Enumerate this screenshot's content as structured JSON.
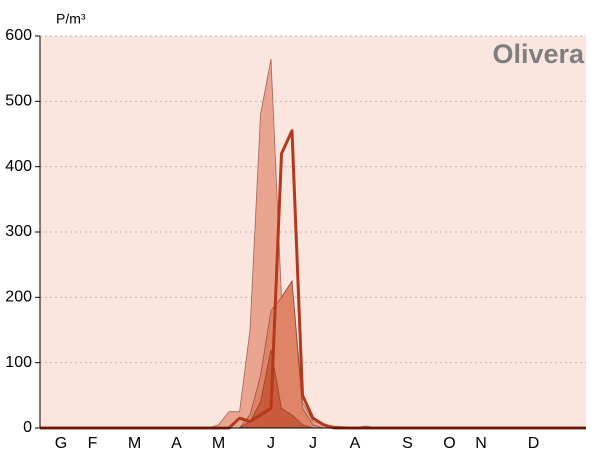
{
  "chart_data": {
    "type": "area",
    "title": "Olivera",
    "y_label": "P/m³",
    "categories": [
      null,
      null,
      "G",
      null,
      null,
      "F",
      null,
      null,
      null,
      "M",
      null,
      null,
      null,
      "A",
      null,
      null,
      null,
      "M",
      null,
      null,
      null,
      null,
      "J",
      null,
      null,
      null,
      "J",
      null,
      null,
      null,
      "A",
      null,
      null,
      null,
      null,
      "S",
      null,
      null,
      null,
      "O",
      null,
      null,
      "N",
      null,
      null,
      null,
      null,
      "D",
      null,
      null,
      null,
      null,
      null
    ],
    "series": [
      {
        "type": "area",
        "color": "#eaa591",
        "values": [
          0,
          0,
          0,
          0,
          0,
          0,
          0,
          0,
          0,
          0,
          0,
          0,
          0,
          0,
          0,
          0,
          0,
          5,
          25,
          25,
          150,
          480,
          565,
          200,
          225,
          40,
          10,
          5,
          3,
          2,
          1,
          3,
          1,
          0,
          0,
          0,
          0,
          0,
          0,
          0,
          0,
          0,
          0,
          0,
          0,
          0,
          0,
          0,
          0,
          0,
          0,
          0,
          0
        ]
      },
      {
        "type": "area",
        "color": "#df8467",
        "values": [
          0,
          0,
          0,
          0,
          0,
          0,
          0,
          0,
          0,
          0,
          0,
          0,
          0,
          0,
          0,
          0,
          0,
          0,
          0,
          0,
          20,
          80,
          180,
          200,
          225,
          30,
          5,
          0,
          0,
          0,
          0,
          0,
          0,
          0,
          0,
          0,
          0,
          0,
          0,
          0,
          0,
          0,
          0,
          0,
          0,
          0,
          0,
          0,
          0,
          0,
          0,
          0,
          0
        ]
      },
      {
        "type": "area",
        "color": "#c95a3a",
        "values": [
          0,
          0,
          0,
          0,
          0,
          0,
          0,
          0,
          0,
          0,
          0,
          0,
          0,
          0,
          0,
          0,
          0,
          0,
          0,
          0,
          10,
          40,
          120,
          30,
          20,
          5,
          0,
          0,
          0,
          0,
          0,
          0,
          0,
          0,
          0,
          0,
          0,
          0,
          0,
          0,
          0,
          0,
          0,
          0,
          0,
          0,
          0,
          0,
          0,
          0,
          0,
          0,
          0
        ]
      },
      {
        "type": "line",
        "color": "#b3391d",
        "values": [
          0,
          0,
          0,
          0,
          0,
          0,
          0,
          0,
          0,
          0,
          0,
          0,
          0,
          0,
          0,
          0,
          0,
          0,
          0,
          15,
          10,
          20,
          30,
          420,
          455,
          50,
          15,
          5,
          0,
          0,
          0,
          0,
          0,
          0,
          0,
          0,
          0,
          0,
          0,
          0,
          0,
          0,
          0,
          0,
          0,
          0,
          0,
          0,
          0,
          0,
          0,
          0,
          0
        ]
      }
    ],
    "ylim": [
      0,
      600
    ],
    "yticks": [
      0,
      100,
      200,
      300,
      400,
      500,
      600
    ],
    "grid": true,
    "background": "#fbe6df"
  }
}
